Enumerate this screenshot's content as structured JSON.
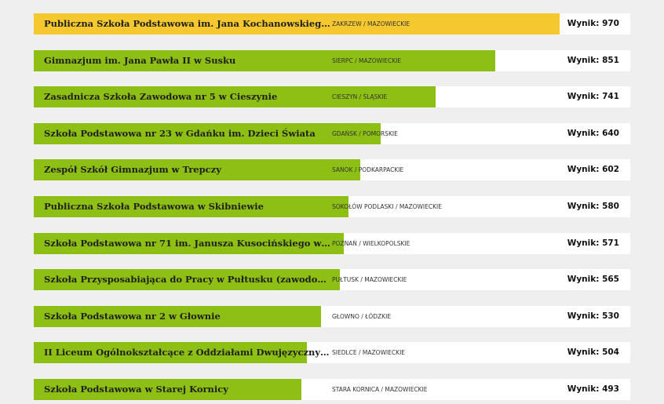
{
  "chart_data": {
    "type": "bar",
    "orientation": "horizontal",
    "score_label": "Wynik:",
    "xlim": [
      0,
      1100
    ],
    "colors": {
      "highlight": "#f5c82f",
      "bar": "#8dbf14",
      "track": "#ffffff",
      "background": "#efefef"
    },
    "rows": [
      {
        "name": "Publiczna Szkoła Podstawowa im. Jana Kochanowskiego w Zakrzewie",
        "place": "ZAKRZEW / MAZOWIECKIE",
        "value": 970,
        "highlight": true
      },
      {
        "name": "Gimnazjum im. Jana Pawła II w Susku",
        "place": "SIERPC / MAZOWIECKIE",
        "value": 851
      },
      {
        "name": "Zasadnicza Szkoła Zawodowa nr 5 w Cieszynie",
        "place": "CIESZYN / ŚLĄSKIE",
        "value": 741
      },
      {
        "name": "Szkoła Podstawowa nr 23 w Gdańku im. Dzieci Świata",
        "place": "GDAŃSK / POMORSKIE",
        "value": 640
      },
      {
        "name": "Zespół Szkół Gimnazjum w Trepczy",
        "place": "SANOK / PODKARPACKIE",
        "value": 602
      },
      {
        "name": "Publiczna Szkoła Podstawowa w Skibniewie",
        "place": "SOKOŁÓW PODLASKI / MAZOWIECKIE",
        "value": 580
      },
      {
        "name": "Szkoła Podstawowa nr 71 im. Janusza Kusocińskiego w Poznaniu",
        "place": "POZNAŃ / WIELKOPOLSKIE",
        "value": 571
      },
      {
        "name": "Szkoła Przysposabiająca do Pracy w Pułtusku (zawodowa)",
        "place": "PUŁTUSK / MAZOWIECKIE",
        "value": 565
      },
      {
        "name": "Szkoła Podstawowa nr 2 w Głownie",
        "place": "GŁOWNO / ŁÓDZKIE",
        "value": 530
      },
      {
        "name": "II Liceum Ogólnokształcące z Oddziałami Dwujęzycznymi im. Ś...",
        "place": "SIEDLCE / MAZOWIECKIE",
        "value": 504
      },
      {
        "name": "Szkoła Podstawowa w Starej Kornicy",
        "place": "STARA KORNICA / MAZOWIECKIE",
        "value": 493
      }
    ]
  }
}
